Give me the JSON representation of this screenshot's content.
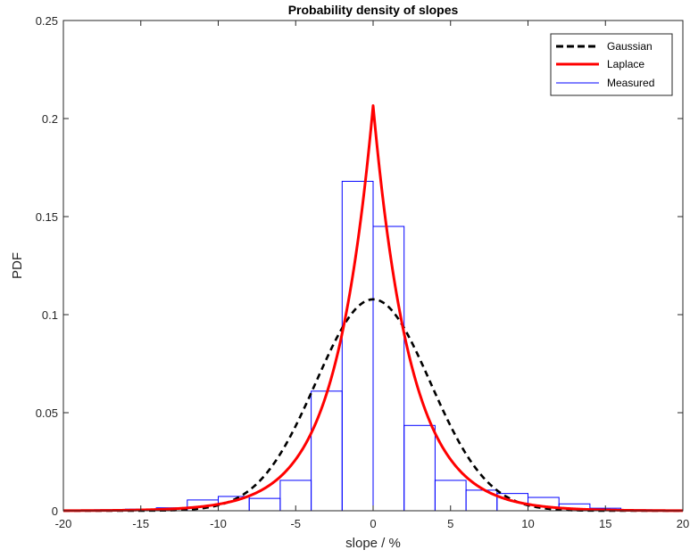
{
  "chart_data": {
    "type": "bar",
    "title": "Probability density of slopes",
    "xlabel": "slope / %",
    "ylabel": "PDF",
    "xlim": [
      -20,
      20
    ],
    "ylim": [
      0,
      0.25
    ],
    "xticks": [
      -20,
      -15,
      -10,
      -5,
      0,
      5,
      10,
      15,
      20
    ],
    "xtick_labels": [
      "-20",
      "-15",
      "-10",
      "-5",
      "0",
      "5",
      "10",
      "15",
      "20"
    ],
    "yticks": [
      0,
      0.05,
      0.1,
      0.15,
      0.2,
      0.25
    ],
    "ytick_labels": [
      "0",
      "0.05",
      "0.1",
      "0.15",
      "0.2",
      "0.25"
    ],
    "grid": false,
    "legend_position": "top-right",
    "histogram": {
      "name": "Measured",
      "color": "#0000ff",
      "bin_edges": [
        -20,
        -18,
        -16,
        -14,
        -12,
        -10,
        -8,
        -6,
        -4,
        -2,
        0,
        2,
        4,
        6,
        8,
        10,
        12,
        14,
        16,
        18,
        20
      ],
      "values": [
        0.0003,
        0.0005,
        0.0008,
        0.0015,
        0.0055,
        0.0073,
        0.0063,
        0.0155,
        0.061,
        0.168,
        0.145,
        0.0435,
        0.0155,
        0.0105,
        0.0088,
        0.0068,
        0.0035,
        0.0013,
        0.0005,
        0.0003
      ]
    },
    "series": [
      {
        "name": "Gaussian",
        "style": "dashed",
        "color": "#000000",
        "distribution": "normal",
        "mean": 0,
        "sigma": 3.7,
        "peak": 0.1078
      },
      {
        "name": "Laplace",
        "style": "solid",
        "color": "#ff0000",
        "distribution": "laplace",
        "mean": 0,
        "scale": 2.42,
        "peak": 0.2066
      }
    ],
    "legend": [
      "Gaussian",
      "Laplace",
      "Measured"
    ]
  }
}
